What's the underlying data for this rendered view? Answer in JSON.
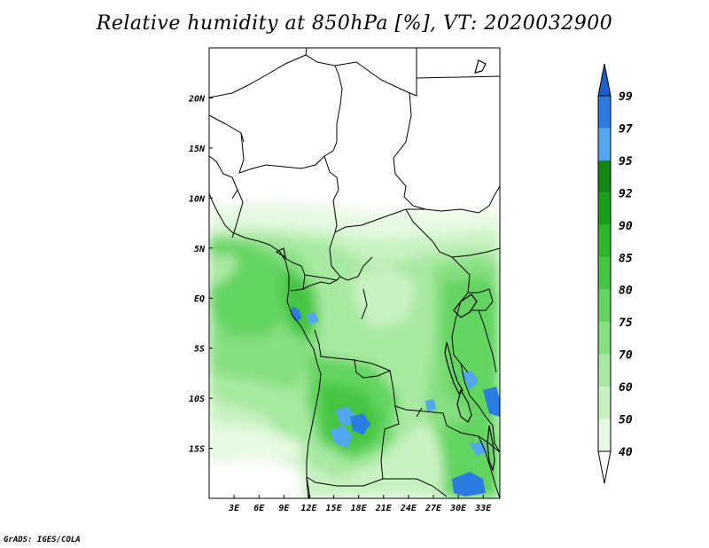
{
  "title": "Relative humidity at 850hPa [%], VT: 2020032900",
  "credit": "GrADS: IGES/COLA",
  "map": {
    "lon_range": [
      0,
      35
    ],
    "lat_range": [
      -20,
      25
    ],
    "lon_ticks": [
      "3E",
      "6E",
      "9E",
      "12E",
      "15E",
      "18E",
      "21E",
      "24E",
      "27E",
      "30E",
      "33E"
    ],
    "lon_values": [
      3,
      6,
      9,
      12,
      15,
      18,
      21,
      24,
      27,
      30,
      33
    ],
    "lat_ticks": [
      "20N",
      "15N",
      "10N",
      "5N",
      "EQ",
      "5S",
      "10S",
      "15S"
    ],
    "lat_values": [
      20,
      15,
      10,
      5,
      0,
      -5,
      -10,
      -15
    ]
  },
  "colorbar": {
    "levels": [
      "40",
      "50",
      "60",
      "70",
      "75",
      "80",
      "85",
      "90",
      "92",
      "95",
      "97",
      "99"
    ],
    "colors": [
      "#ffffff",
      "#e6f9e2",
      "#c9f2c2",
      "#a7e9a0",
      "#86df80",
      "#63d461",
      "#44c642",
      "#2db82b",
      "#1a9e18",
      "#118610",
      "#52a7ef",
      "#2b7be0",
      "#1d5fc8"
    ]
  }
}
